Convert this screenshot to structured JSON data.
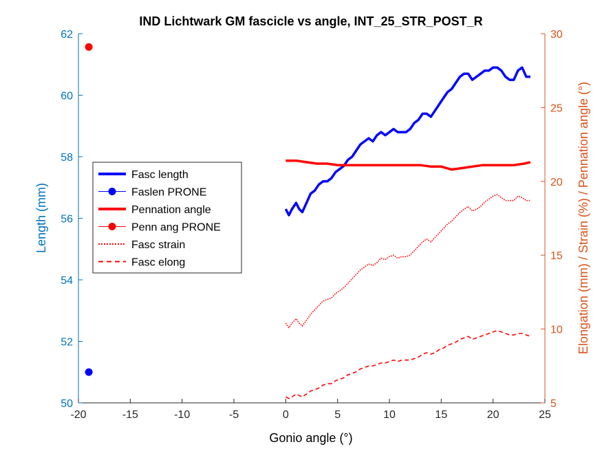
{
  "chart_data": {
    "type": "line",
    "title": "IND Lichtwark GM fascicle vs angle, INT_25_STR_POST_R",
    "xlabel": "Gonio angle (°)",
    "ylabel_left": "Length (mm)",
    "ylabel_right": "Elongation (mm) / Strain (%) / Pennation angle (°)",
    "xlim": [
      -20,
      25
    ],
    "ylim_left": [
      50,
      62
    ],
    "ylim_right": [
      5,
      30
    ],
    "x_ticks": [
      "-20",
      "-15",
      "-10",
      "-5",
      "0",
      "5",
      "10",
      "15",
      "20",
      "25"
    ],
    "y_left_ticks": [
      "50",
      "52",
      "54",
      "56",
      "58",
      "60",
      "62"
    ],
    "y_right_ticks": [
      "5",
      "10",
      "15",
      "20",
      "25",
      "30"
    ],
    "colors": {
      "left_axis": "#0072BD",
      "right_axis": "#D95319",
      "blue": "#0000FF",
      "red": "#FF0000"
    },
    "legend_position": "middle-left",
    "series": [
      {
        "name": "Fasc length",
        "axis": "left",
        "style": "solid-thick",
        "color": "#0000FF",
        "x": [
          0,
          0.3,
          0.6,
          1,
          1.3,
          1.6,
          2,
          2.4,
          2.8,
          3.2,
          3.6,
          4,
          4.4,
          4.8,
          5.2,
          5.6,
          6,
          6.4,
          6.8,
          7.2,
          7.6,
          8,
          8.4,
          8.8,
          9.2,
          9.6,
          10,
          10.4,
          10.8,
          11.2,
          11.6,
          12,
          12.4,
          12.8,
          13.2,
          13.6,
          14,
          14.4,
          14.8,
          15.2,
          15.6,
          16,
          16.4,
          16.8,
          17.2,
          17.6,
          18,
          18.4,
          18.8,
          19.2,
          19.6,
          20,
          20.4,
          20.8,
          21.2,
          21.6,
          22,
          22.4,
          22.8,
          23.2,
          23.6
        ],
        "y": [
          56.3,
          56.1,
          56.3,
          56.5,
          56.3,
          56.2,
          56.5,
          56.8,
          56.9,
          57.1,
          57.2,
          57.2,
          57.3,
          57.5,
          57.6,
          57.7,
          57.9,
          58.0,
          58.2,
          58.4,
          58.5,
          58.6,
          58.5,
          58.7,
          58.8,
          58.7,
          58.8,
          58.9,
          58.8,
          58.8,
          58.8,
          58.9,
          59.1,
          59.2,
          59.4,
          59.4,
          59.3,
          59.5,
          59.7,
          59.9,
          60.1,
          60.2,
          60.4,
          60.6,
          60.7,
          60.7,
          60.5,
          60.6,
          60.7,
          60.8,
          60.8,
          60.9,
          60.9,
          60.8,
          60.6,
          60.5,
          60.5,
          60.8,
          60.9,
          60.6,
          60.6
        ]
      },
      {
        "name": "Faslen PRONE",
        "axis": "left",
        "style": "marker",
        "color": "#0000FF",
        "x": [
          -19
        ],
        "y": [
          51
        ]
      },
      {
        "name": "Pennation angle",
        "axis": "right",
        "style": "solid-thick",
        "color": "#FF0000",
        "x": [
          0,
          1,
          2,
          3,
          4,
          5,
          6,
          7,
          8,
          9,
          10,
          11,
          12,
          13,
          14,
          15,
          16,
          17,
          18,
          19,
          20,
          21,
          22,
          23,
          23.6
        ],
        "y": [
          21.4,
          21.4,
          21.3,
          21.2,
          21.2,
          21.1,
          21.1,
          21.1,
          21.1,
          21.1,
          21.1,
          21.1,
          21.1,
          21.1,
          21.0,
          21.0,
          20.8,
          20.9,
          21.0,
          21.1,
          21.1,
          21.1,
          21.1,
          21.2,
          21.3
        ]
      },
      {
        "name": "Penn ang PRONE",
        "axis": "right",
        "style": "marker",
        "color": "#FF0000",
        "x": [
          -19
        ],
        "y": [
          29.1
        ]
      },
      {
        "name": "Fasc strain",
        "axis": "right",
        "style": "dotted",
        "color": "#FF0000",
        "x": [
          0,
          0.3,
          0.6,
          1,
          1.3,
          1.6,
          2,
          2.4,
          2.8,
          3.2,
          3.6,
          4,
          4.4,
          4.8,
          5.2,
          5.6,
          6,
          6.4,
          6.8,
          7.2,
          7.6,
          8,
          8.4,
          8.8,
          9.2,
          9.6,
          10,
          10.4,
          10.8,
          11.2,
          11.6,
          12,
          12.4,
          12.8,
          13.2,
          13.6,
          14,
          14.4,
          14.8,
          15.2,
          15.6,
          16,
          16.4,
          16.8,
          17.2,
          17.6,
          18,
          18.4,
          18.8,
          19.2,
          19.6,
          20,
          20.4,
          20.8,
          21.2,
          21.6,
          22,
          22.4,
          22.8,
          23.2,
          23.6
        ],
        "y": [
          10.4,
          10.1,
          10.4,
          10.7,
          10.4,
          10.2,
          10.6,
          11.0,
          11.3,
          11.6,
          11.9,
          12.0,
          12.1,
          12.4,
          12.6,
          12.8,
          13.1,
          13.4,
          13.7,
          14.0,
          14.2,
          14.4,
          14.3,
          14.5,
          14.8,
          14.7,
          14.9,
          15.0,
          14.8,
          14.9,
          14.9,
          15.0,
          15.3,
          15.6,
          15.9,
          16.1,
          15.9,
          16.2,
          16.5,
          16.8,
          17.1,
          17.3,
          17.6,
          17.9,
          18.1,
          18.3,
          18.0,
          18.1,
          18.3,
          18.6,
          18.8,
          19.0,
          19.1,
          18.9,
          18.7,
          18.7,
          18.7,
          19.0,
          18.9,
          18.7,
          18.7
        ]
      },
      {
        "name": "Fasc elong",
        "axis": "right",
        "style": "dashed",
        "color": "#FF0000",
        "x": [
          0,
          0.3,
          0.6,
          1,
          1.3,
          1.6,
          2,
          2.4,
          2.8,
          3.2,
          3.6,
          4,
          4.4,
          4.8,
          5.2,
          5.6,
          6,
          6.4,
          6.8,
          7.2,
          7.6,
          8,
          8.4,
          8.8,
          9.2,
          9.6,
          10,
          10.4,
          10.8,
          11.2,
          11.6,
          12,
          12.4,
          12.8,
          13.2,
          13.6,
          14,
          14.4,
          14.8,
          15.2,
          15.6,
          16,
          16.4,
          16.8,
          17.2,
          17.6,
          18,
          18.4,
          18.8,
          19.2,
          19.6,
          20,
          20.4,
          20.8,
          21.2,
          21.6,
          22,
          22.4,
          22.8,
          23.2,
          23.6
        ],
        "y": [
          5.4,
          5.3,
          5.4,
          5.6,
          5.5,
          5.4,
          5.6,
          5.8,
          5.9,
          6.0,
          6.2,
          6.3,
          6.3,
          6.5,
          6.6,
          6.7,
          6.9,
          7.0,
          7.1,
          7.3,
          7.4,
          7.5,
          7.5,
          7.6,
          7.7,
          7.7,
          7.8,
          7.9,
          7.8,
          7.9,
          7.9,
          7.9,
          8.0,
          8.1,
          8.3,
          8.4,
          8.3,
          8.4,
          8.6,
          8.7,
          8.9,
          9.0,
          9.1,
          9.3,
          9.4,
          9.5,
          9.3,
          9.4,
          9.5,
          9.6,
          9.7,
          9.8,
          9.9,
          9.8,
          9.7,
          9.6,
          9.6,
          9.7,
          9.7,
          9.6,
          9.5
        ]
      }
    ]
  }
}
